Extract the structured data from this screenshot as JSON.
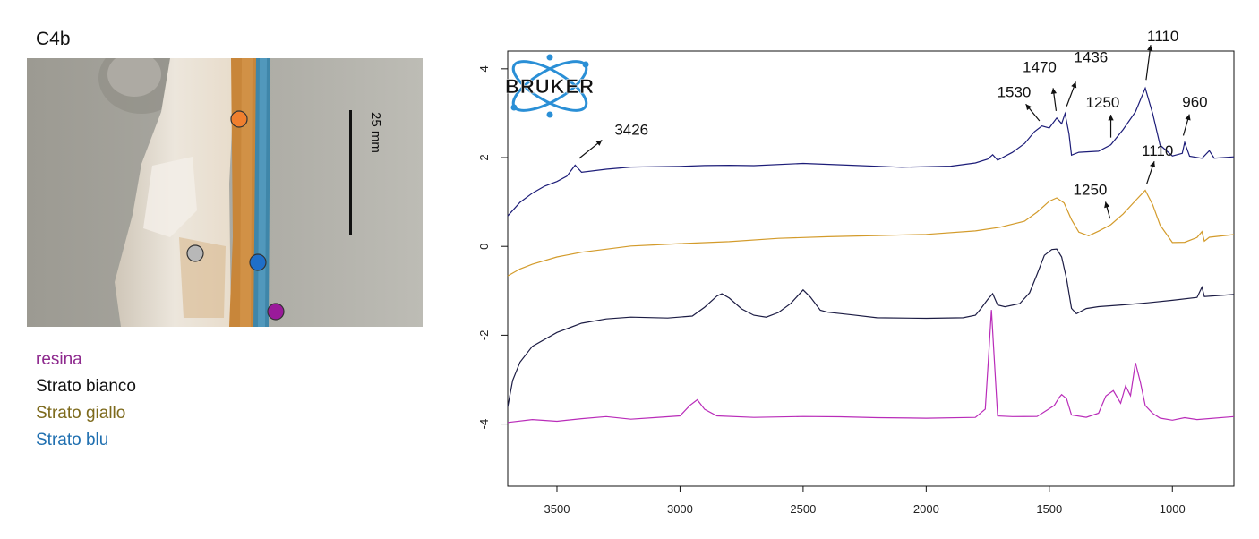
{
  "sample_label": "C4b",
  "scale_bar_label": "25 mm",
  "legend": [
    {
      "label": "resina",
      "color": "#8e2a8e"
    },
    {
      "label": "Strato bianco",
      "color": "#111111"
    },
    {
      "label": "Strato giallo",
      "color": "#7d6a1c"
    },
    {
      "label": "Strato blu",
      "color": "#1f6fb0"
    }
  ],
  "markers": [
    {
      "layer": "Strato giallo",
      "color": "#f07f2e"
    },
    {
      "layer": "Strato bianco",
      "color": "#b8b8b8"
    },
    {
      "layer": "Strato blu",
      "color": "#1f6fc9"
    },
    {
      "layer": "resina",
      "color": "#9a1a9a"
    }
  ],
  "logo_text": "BRUKER",
  "chart_data": {
    "type": "line",
    "title": "",
    "xlabel": "",
    "ylabel": "",
    "xlim": [
      3700,
      750
    ],
    "ylim": [
      -5.4,
      4.4
    ],
    "xticks": [
      3500,
      3000,
      2500,
      2000,
      1500,
      1000
    ],
    "yticks": [
      4,
      2,
      0,
      -2,
      -4
    ],
    "series": [
      {
        "color": "#1c1c78",
        "points": [
          [
            3700,
            0.7
          ],
          [
            3650,
            1.0
          ],
          [
            3600,
            1.2
          ],
          [
            3550,
            1.35
          ],
          [
            3500,
            1.45
          ],
          [
            3460,
            1.6
          ],
          [
            3426,
            1.85
          ],
          [
            3400,
            1.65
          ],
          [
            3300,
            1.72
          ],
          [
            3200,
            1.78
          ],
          [
            3100,
            1.8
          ],
          [
            3000,
            1.82
          ],
          [
            2900,
            1.84
          ],
          [
            2800,
            1.84
          ],
          [
            2700,
            1.82
          ],
          [
            2500,
            1.85
          ],
          [
            2300,
            1.82
          ],
          [
            2100,
            1.8
          ],
          [
            1900,
            1.82
          ],
          [
            1800,
            1.88
          ],
          [
            1750,
            1.96
          ],
          [
            1730,
            2.08
          ],
          [
            1710,
            1.96
          ],
          [
            1650,
            2.1
          ],
          [
            1600,
            2.3
          ],
          [
            1560,
            2.6
          ],
          [
            1530,
            2.7
          ],
          [
            1500,
            2.65
          ],
          [
            1470,
            2.9
          ],
          [
            1450,
            2.75
          ],
          [
            1436,
            3.0
          ],
          [
            1420,
            2.55
          ],
          [
            1410,
            2.05
          ],
          [
            1380,
            2.1
          ],
          [
            1300,
            2.15
          ],
          [
            1250,
            2.3
          ],
          [
            1200,
            2.65
          ],
          [
            1150,
            3.05
          ],
          [
            1110,
            3.55
          ],
          [
            1080,
            3.0
          ],
          [
            1050,
            2.3
          ],
          [
            1000,
            2.05
          ],
          [
            960,
            2.1
          ],
          [
            950,
            2.35
          ],
          [
            930,
            2.05
          ],
          [
            880,
            2.0
          ],
          [
            850,
            2.15
          ],
          [
            830,
            2.0
          ],
          [
            750,
            2.0
          ]
        ]
      },
      {
        "color": "#d39b2b",
        "points": [
          [
            3700,
            -0.65
          ],
          [
            3650,
            -0.5
          ],
          [
            3600,
            -0.4
          ],
          [
            3500,
            -0.25
          ],
          [
            3400,
            -0.15
          ],
          [
            3300,
            -0.08
          ],
          [
            3200,
            0.0
          ],
          [
            3100,
            0.04
          ],
          [
            3000,
            0.08
          ],
          [
            2800,
            0.12
          ],
          [
            2600,
            0.17
          ],
          [
            2400,
            0.2
          ],
          [
            2200,
            0.25
          ],
          [
            2000,
            0.29
          ],
          [
            1800,
            0.35
          ],
          [
            1700,
            0.42
          ],
          [
            1600,
            0.55
          ],
          [
            1550,
            0.75
          ],
          [
            1500,
            1.0
          ],
          [
            1470,
            1.1
          ],
          [
            1440,
            1.0
          ],
          [
            1410,
            0.6
          ],
          [
            1380,
            0.3
          ],
          [
            1340,
            0.25
          ],
          [
            1300,
            0.35
          ],
          [
            1250,
            0.5
          ],
          [
            1200,
            0.75
          ],
          [
            1150,
            1.05
          ],
          [
            1110,
            1.25
          ],
          [
            1080,
            0.95
          ],
          [
            1050,
            0.5
          ],
          [
            1000,
            0.1
          ],
          [
            950,
            0.1
          ],
          [
            900,
            0.2
          ],
          [
            880,
            0.35
          ],
          [
            870,
            0.1
          ],
          [
            850,
            0.2
          ],
          [
            750,
            0.25
          ]
        ]
      },
      {
        "color": "#1c1c44",
        "points": [
          [
            3700,
            -3.6
          ],
          [
            3680,
            -3.0
          ],
          [
            3650,
            -2.6
          ],
          [
            3600,
            -2.25
          ],
          [
            3500,
            -1.95
          ],
          [
            3400,
            -1.75
          ],
          [
            3300,
            -1.65
          ],
          [
            3200,
            -1.6
          ],
          [
            3050,
            -1.6
          ],
          [
            2950,
            -1.55
          ],
          [
            2900,
            -1.35
          ],
          [
            2850,
            -1.1
          ],
          [
            2830,
            -1.05
          ],
          [
            2800,
            -1.15
          ],
          [
            2750,
            -1.4
          ],
          [
            2700,
            -1.55
          ],
          [
            2650,
            -1.6
          ],
          [
            2600,
            -1.5
          ],
          [
            2550,
            -1.3
          ],
          [
            2500,
            -1.0
          ],
          [
            2470,
            -1.15
          ],
          [
            2430,
            -1.45
          ],
          [
            2400,
            -1.5
          ],
          [
            2300,
            -1.55
          ],
          [
            2200,
            -1.6
          ],
          [
            2000,
            -1.6
          ],
          [
            1850,
            -1.6
          ],
          [
            1800,
            -1.55
          ],
          [
            1780,
            -1.4
          ],
          [
            1750,
            -1.2
          ],
          [
            1730,
            -1.05
          ],
          [
            1710,
            -1.3
          ],
          [
            1680,
            -1.35
          ],
          [
            1620,
            -1.3
          ],
          [
            1580,
            -1.05
          ],
          [
            1550,
            -0.65
          ],
          [
            1520,
            -0.2
          ],
          [
            1490,
            -0.05
          ],
          [
            1470,
            -0.05
          ],
          [
            1450,
            -0.25
          ],
          [
            1430,
            -0.75
          ],
          [
            1410,
            -1.4
          ],
          [
            1390,
            -1.5
          ],
          [
            1350,
            -1.4
          ],
          [
            1300,
            -1.35
          ],
          [
            1200,
            -1.3
          ],
          [
            1100,
            -1.25
          ],
          [
            1000,
            -1.2
          ],
          [
            900,
            -1.15
          ],
          [
            880,
            -0.9
          ],
          [
            870,
            -1.15
          ],
          [
            750,
            -1.1
          ]
        ]
      },
      {
        "color": "#b92cb9",
        "points": [
          [
            3700,
            -3.95
          ],
          [
            3600,
            -3.9
          ],
          [
            3500,
            -3.95
          ],
          [
            3400,
            -3.9
          ],
          [
            3300,
            -3.85
          ],
          [
            3200,
            -3.9
          ],
          [
            3100,
            -3.85
          ],
          [
            3000,
            -3.8
          ],
          [
            2960,
            -3.6
          ],
          [
            2930,
            -3.45
          ],
          [
            2900,
            -3.65
          ],
          [
            2850,
            -3.8
          ],
          [
            2700,
            -3.85
          ],
          [
            2500,
            -3.85
          ],
          [
            2350,
            -3.85
          ],
          [
            2200,
            -3.85
          ],
          [
            2000,
            -3.85
          ],
          [
            1800,
            -3.85
          ],
          [
            1760,
            -3.65
          ],
          [
            1745,
            -2.3
          ],
          [
            1735,
            -1.45
          ],
          [
            1725,
            -2.4
          ],
          [
            1710,
            -3.8
          ],
          [
            1650,
            -3.85
          ],
          [
            1550,
            -3.85
          ],
          [
            1480,
            -3.6
          ],
          [
            1460,
            -3.4
          ],
          [
            1450,
            -3.35
          ],
          [
            1430,
            -3.45
          ],
          [
            1410,
            -3.8
          ],
          [
            1350,
            -3.85
          ],
          [
            1300,
            -3.75
          ],
          [
            1270,
            -3.35
          ],
          [
            1240,
            -3.25
          ],
          [
            1210,
            -3.55
          ],
          [
            1190,
            -3.15
          ],
          [
            1170,
            -3.35
          ],
          [
            1150,
            -2.6
          ],
          [
            1130,
            -3.05
          ],
          [
            1110,
            -3.6
          ],
          [
            1080,
            -3.75
          ],
          [
            1050,
            -3.85
          ],
          [
            1000,
            -3.9
          ],
          [
            950,
            -3.85
          ],
          [
            900,
            -3.9
          ],
          [
            750,
            -3.85
          ]
        ]
      }
    ],
    "annotations": [
      {
        "label": "3426",
        "x": 3426,
        "y": 1.85
      },
      {
        "label": "1530",
        "x": 1530,
        "y": 2.7
      },
      {
        "label": "1470",
        "x": 1470,
        "y": 2.9
      },
      {
        "label": "1436",
        "x": 1436,
        "y": 3.0
      },
      {
        "label": "1250",
        "x": 1250,
        "y": 2.3
      },
      {
        "label": "1110",
        "x": 1110,
        "y": 3.55
      },
      {
        "label": "960",
        "x": 960,
        "y": 2.35
      },
      {
        "label": "1110",
        "x": 1110,
        "y": 1.25
      },
      {
        "label": "1250",
        "x": 1250,
        "y": 0.5
      }
    ]
  }
}
